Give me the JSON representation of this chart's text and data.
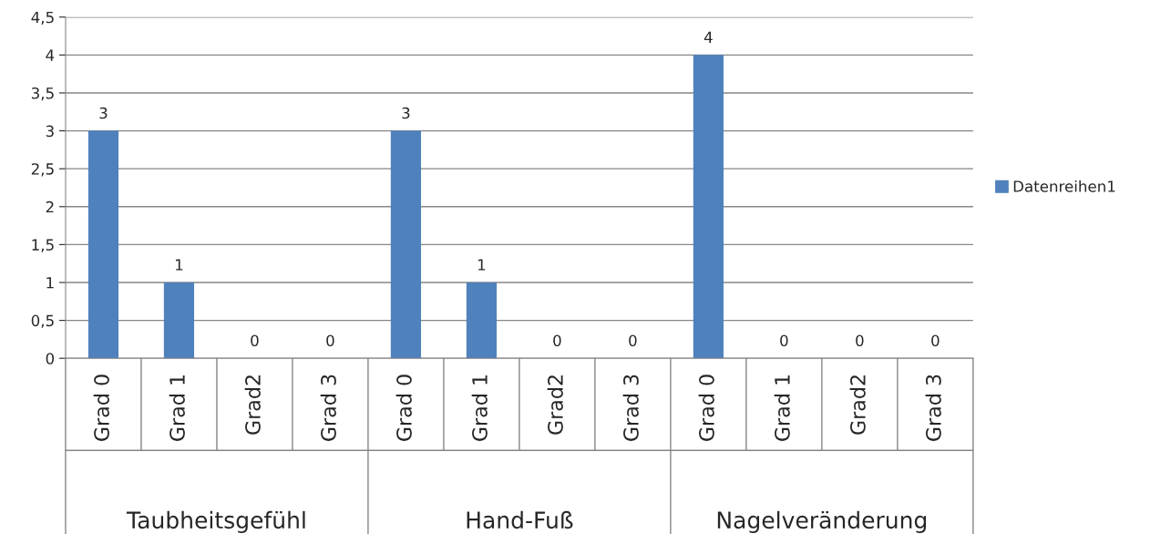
{
  "chart_data": {
    "type": "bar",
    "categories": [
      "Grad 0",
      "Grad 1",
      "Grad2",
      "Grad 3",
      "Grad 0",
      "Grad 1",
      "Grad2",
      "Grad 3",
      "Grad 0",
      "Grad 1",
      "Grad2",
      "Grad 3"
    ],
    "series": [
      {
        "name": "Datenreihen1",
        "color": "#4f81bd",
        "values": [
          3,
          1,
          0,
          0,
          3,
          1,
          0,
          0,
          4,
          0,
          0,
          0
        ]
      }
    ],
    "ylim": [
      0,
      4.5
    ],
    "yticks": [
      0,
      {
        "value": 0.5,
        "label": "0,5"
      },
      1,
      {
        "value": 1.5,
        "label": "1,5"
      },
      2,
      {
        "value": 2.5,
        "label": "2,5"
      },
      3,
      {
        "value": 3.5,
        "label": "3,5"
      },
      4,
      {
        "value": 4.5,
        "label": "4,5"
      }
    ],
    "grid": "y",
    "legend": "right",
    "data_labels": true,
    "annotations": [
      "Taubheitsgefühl",
      "Hand-Fuß",
      "Nagelveränderung"
    ]
  }
}
